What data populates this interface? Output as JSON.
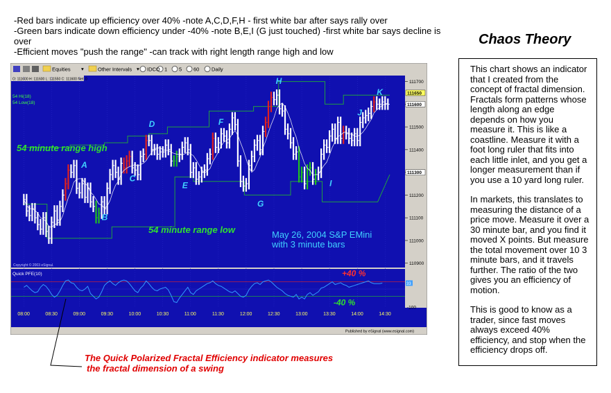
{
  "notes": [
    "-Red bars indicate up efficiency over 40% -note A,C,D,F,H - first white bar after says rally over",
    "-Green bars indicate down efficiency under -40% -note B,E,I (G just touched) -first white bar says decline is over",
    "-Efficient moves \"push the range\" -can track with right length range high and low"
  ],
  "title": "Chaos Theory",
  "explanation": [
    "This chart shows an indicator that I created from the concept of fractal dimension. Fractals form patterns whose length along an edge depends on how you measure it. This is like a coastline. Measure it with a foot long ruler that fits into each little inlet, and you get a longer measurement than if you use a 10 yard long ruler.",
    "In markets, this translates to measuring the distance of a price move. Measure it over a 30 minute bar, and you find it moved X points. But measure the total movement over 10 3 minute bars, and it travels further. The ratio of the two gives you an efficiency of motion.",
    "This is good to know as a trader, since fast moves always exceed 40% efficiency, and stop when the efficiency drops off."
  ],
  "caption": [
    "The Quick Polarized Fractal Efficiency indicator measures",
    "the fractal dimension of a swing"
  ],
  "toolbar": {
    "equities": "Equities",
    "other_intervals": "Other Intervals",
    "symbol": "IDCO",
    "i1": "1",
    "i5": "5",
    "i60": "60",
    "daily": "Daily"
  },
  "status_line": "O: 111600   H: 111600   L: 111550   C: 111600   Net: 0",
  "copyright": "Copyright © 2003 eSignal.",
  "published": "Published by eSignal (www.esignal.com)",
  "colors": {
    "chart_bg": "#1010b0",
    "up_efficiency": "#e02020",
    "down_efficiency": "#20c020",
    "neutral_bar": "#ffffff",
    "range_line": "#20a040",
    "pfe_line": "#3399ff",
    "annotation_cyan": "#40d0ff",
    "annotation_green": "#30e030",
    "annotation_red": "#ff3030",
    "price_tag_bg": "#ffffff",
    "tag_yellow": "#ffff60"
  },
  "chart_data": [
    {
      "type": "line",
      "panel": "price",
      "title": "",
      "legend": [
        "54 Hi(18)",
        "54 Low(18)"
      ],
      "x_ticks": [
        "08:00",
        "08:30",
        "09:00",
        "09:30",
        "10:00",
        "10:30",
        "11:00",
        "11:30",
        "12:00",
        "12:30",
        "13:00",
        "13:30",
        "14:00",
        "14:30"
      ],
      "y_ticks": [
        111700,
        111600,
        111500,
        111400,
        111300,
        111200,
        111100,
        111000,
        110900
      ],
      "highlighted_ticks": [
        111650,
        111600,
        111300
      ],
      "ylim": [
        110890,
        111720
      ],
      "series": [
        {
          "name": "54 Hi(18)",
          "x": [
            "08:00",
            "08:50",
            "08:50",
            "09:27",
            "09:27",
            "09:52",
            "09:52",
            "10:15",
            "10:15",
            "10:35",
            "10:35",
            "11:20",
            "11:20",
            "12:08",
            "12:08",
            "12:35",
            "12:35",
            "13:25",
            "13:25",
            "13:45",
            "13:45",
            "14:35"
          ],
          "values": [
            111410,
            111410,
            111420,
            111420,
            111430,
            111430,
            111460,
            111460,
            111470,
            111470,
            111500,
            111500,
            111570,
            111570,
            111590,
            111590,
            111700,
            111700,
            111600,
            111600,
            111640,
            111640
          ]
        },
        {
          "name": "54 Low(18)",
          "x": [
            "08:00",
            "08:25",
            "08:25",
            "09:35",
            "09:35",
            "10:43",
            "10:43",
            "11:03",
            "11:03",
            "11:58",
            "11:58",
            "12:48",
            "12:48",
            "13:22",
            "13:22",
            "14:22",
            "14:22",
            "14:35"
          ],
          "values": [
            111160,
            111160,
            111010,
            111010,
            111060,
            111060,
            111280,
            111280,
            111260,
            111260,
            111200,
            111200,
            111260,
            111260,
            111170,
            111170,
            111170,
            111290
          ]
        }
      ],
      "bars": {
        "x": [
          "08:00",
          "08:03",
          "08:06",
          "08:09",
          "08:12",
          "08:15",
          "08:18",
          "08:21",
          "08:24",
          "08:27",
          "08:30",
          "08:33",
          "08:36",
          "08:39",
          "08:42",
          "08:45",
          "08:48",
          "08:51",
          "08:54",
          "08:57",
          "09:00",
          "09:03",
          "09:06",
          "09:09",
          "09:12",
          "09:15",
          "09:18",
          "09:21",
          "09:24",
          "09:27",
          "09:30",
          "09:33",
          "09:36",
          "09:39",
          "09:42",
          "09:45",
          "09:48",
          "09:51",
          "09:54",
          "09:57",
          "10:00",
          "10:03",
          "10:06",
          "10:09",
          "10:12",
          "10:15",
          "10:18",
          "10:21",
          "10:24",
          "10:27",
          "10:30",
          "10:33",
          "10:36",
          "10:39",
          "10:42",
          "10:45",
          "10:48",
          "10:51",
          "10:54",
          "10:57",
          "11:00",
          "11:03",
          "11:06",
          "11:09",
          "11:12",
          "11:15",
          "11:18",
          "11:21",
          "11:24",
          "11:27",
          "11:30",
          "11:33",
          "11:36",
          "11:39",
          "11:42",
          "11:45",
          "11:48",
          "11:51",
          "11:54",
          "11:57",
          "12:00",
          "12:03",
          "12:06",
          "12:09",
          "12:12",
          "12:15",
          "12:18",
          "12:21",
          "12:24",
          "12:27",
          "12:30",
          "12:33",
          "12:36",
          "12:39",
          "12:42",
          "12:45",
          "12:48",
          "12:51",
          "12:54",
          "12:57",
          "13:00",
          "13:03",
          "13:06",
          "13:09",
          "13:12",
          "13:15",
          "13:18",
          "13:21",
          "13:24",
          "13:27",
          "13:30",
          "13:33",
          "13:36",
          "13:39",
          "13:42",
          "13:45",
          "13:48",
          "13:51",
          "13:54",
          "13:57",
          "14:00",
          "14:03",
          "14:06",
          "14:09",
          "14:12",
          "14:15",
          "14:18",
          "14:21",
          "14:24",
          "14:27",
          "14:30",
          "14:33"
        ],
        "close": [
          111180,
          111130,
          111110,
          111140,
          111100,
          111070,
          111050,
          111100,
          111040,
          111010,
          111080,
          111130,
          111090,
          111150,
          111200,
          111250,
          111310,
          111300,
          111330,
          111230,
          111210,
          111250,
          111190,
          111230,
          111170,
          111150,
          111100,
          111120,
          111170,
          111140,
          111230,
          111290,
          111330,
          111300,
          111270,
          111340,
          111320,
          111350,
          111370,
          111320,
          111310,
          111290,
          111370,
          111380,
          111440,
          111440,
          111400,
          111400,
          111380,
          111390,
          111390,
          111420,
          111400,
          111350,
          111350,
          111370,
          111380,
          111410,
          111430,
          111400,
          111300,
          111320,
          111270,
          111280,
          111300,
          111310,
          111360,
          111380,
          111450,
          111410,
          111430,
          111470,
          111460,
          111430,
          111490,
          111540,
          111510,
          111350,
          111260,
          111240,
          111250,
          111330,
          111370,
          111420,
          111440,
          111400,
          111480,
          111520,
          111590,
          111630,
          111620,
          111640,
          111580,
          111570,
          111490,
          111470,
          111430,
          111380,
          111390,
          111280,
          111300,
          111250,
          111310,
          111320,
          111270,
          111290,
          111300,
          111380,
          111420,
          111410,
          111460,
          111490,
          111450,
          111520,
          111450,
          111480,
          111470,
          111450,
          111440,
          111470,
          111440,
          111520,
          111540,
          111550,
          111560,
          111590,
          111610,
          111600,
          111600,
          111610,
          111600,
          111600
        ],
        "color": [
          "white",
          "white",
          "white",
          "white",
          "white",
          "white",
          "white",
          "white",
          "white",
          "white",
          "white",
          "white",
          "white",
          "white",
          "white",
          "red",
          "red",
          "white",
          "white",
          "white",
          "white",
          "white",
          "white",
          "white",
          "white",
          "white",
          "green",
          "green",
          "white",
          "white",
          "white",
          "white",
          "white",
          "white",
          "white",
          "white",
          "red",
          "red",
          "red",
          "white",
          "white",
          "white",
          "white",
          "white",
          "red",
          "white",
          "white",
          "white",
          "white",
          "white",
          "white",
          "white",
          "white",
          "white",
          "green",
          "green",
          "white",
          "white",
          "white",
          "white",
          "white",
          "white",
          "white",
          "white",
          "white",
          "white",
          "white",
          "white",
          "red",
          "white",
          "white",
          "white",
          "white",
          "white",
          "white",
          "white",
          "white",
          "white",
          "white",
          "white",
          "white",
          "white",
          "white",
          "white",
          "white",
          "white",
          "white",
          "red",
          "red",
          "red",
          "white",
          "white",
          "white",
          "white",
          "white",
          "white",
          "white",
          "white",
          "white",
          "green",
          "green",
          "white",
          "green",
          "green",
          "white",
          "green",
          "white",
          "white",
          "white",
          "white",
          "white",
          "white",
          "white",
          "white",
          "white",
          "red",
          "white",
          "white",
          "white",
          "white",
          "white",
          "white",
          "white",
          "white",
          "white",
          "white",
          "red",
          "white",
          "white",
          "white",
          "white",
          "white"
        ]
      },
      "annotations": [
        {
          "text": "A",
          "x": "09:05",
          "y": 111320
        },
        {
          "text": "B",
          "x": "09:27",
          "y": 111090
        },
        {
          "text": "C",
          "x": "09:57",
          "y": 111260
        },
        {
          "text": "D",
          "x": "10:18",
          "y": 111500
        },
        {
          "text": "E",
          "x": "10:54",
          "y": 111230
        },
        {
          "text": "F",
          "x": "11:33",
          "y": 111510
        },
        {
          "text": "G",
          "x": "12:15",
          "y": 111150
        },
        {
          "text": "H",
          "x": "12:35",
          "y": 111690
        },
        {
          "text": "I",
          "x": "13:33",
          "y": 111240
        },
        {
          "text": "J",
          "x": "14:03",
          "y": 111550
        },
        {
          "text": "K",
          "x": "14:24",
          "y": 111640
        }
      ],
      "texts": [
        "54 minute range high",
        "54 minute range low",
        "May 26, 2004 S&P EMini",
        "with 3 minute bars"
      ]
    },
    {
      "type": "line",
      "panel": "indicator",
      "title": "Quick PFE(10)",
      "y_ticks": [
        100,
        33,
        -100
      ],
      "y_tick_labels": [
        "",
        "33",
        "-100"
      ],
      "ylim": [
        -100,
        100
      ],
      "levels": [
        {
          "label": "+40 %",
          "value": 40
        },
        {
          "label": "-40 %",
          "value": -40
        }
      ],
      "series": [
        {
          "name": "Quick PFE(10)",
          "values": [
            10,
            20,
            5,
            -10,
            -20,
            -15,
            10,
            25,
            15,
            -5,
            -30,
            -45,
            -35,
            -10,
            20,
            45,
            50,
            35,
            30,
            10,
            -5,
            -10,
            0,
            15,
            -25,
            -40,
            -55,
            -45,
            -15,
            20,
            35,
            45,
            30,
            20,
            35,
            45,
            50,
            45,
            30,
            10,
            -10,
            -20,
            5,
            20,
            45,
            30,
            10,
            -5,
            -10,
            0,
            5,
            10,
            -5,
            -35,
            -70,
            -75,
            -50,
            -30,
            -10,
            10,
            -20,
            -30,
            -10,
            0,
            10,
            20,
            30,
            35,
            45,
            30,
            20,
            15,
            5,
            -5,
            -15,
            -20,
            -10,
            -25,
            -40,
            -45,
            -35,
            -5,
            15,
            30,
            35,
            25,
            40,
            45,
            50,
            40,
            25,
            10,
            0,
            -10,
            -25,
            -35,
            -40,
            -45,
            -30,
            -55,
            -45,
            -55,
            -30,
            -20,
            -35,
            -25,
            -15,
            5,
            10,
            20,
            30,
            40,
            25,
            30,
            35,
            25,
            20,
            10,
            15,
            20,
            25,
            30,
            35,
            40,
            45,
            35,
            30,
            30,
            30,
            33
          ]
        }
      ]
    }
  ]
}
